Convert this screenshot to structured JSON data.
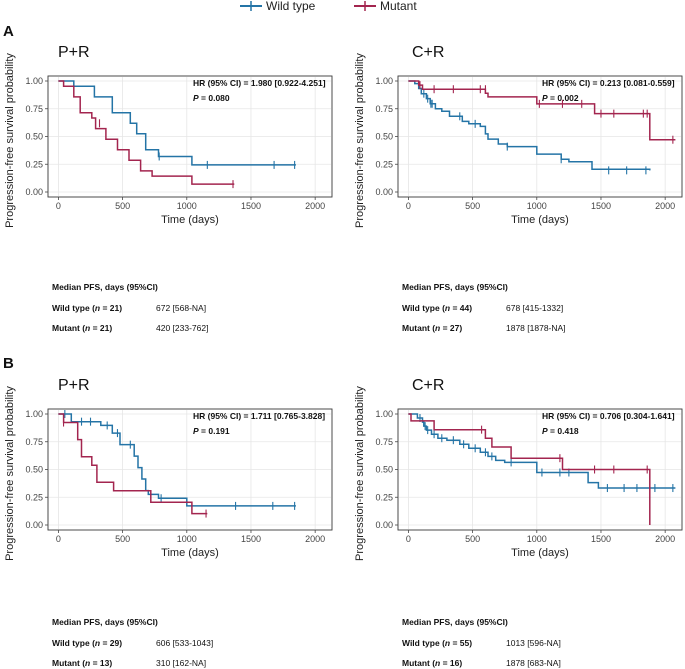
{
  "legend": {
    "items": [
      {
        "label": "Wild type",
        "color": "#2474a6"
      },
      {
        "label": "Mutant",
        "color": "#a3254f"
      }
    ]
  },
  "sections": [
    {
      "label": "A"
    },
    {
      "label": "B"
    }
  ],
  "chart_data": [
    {
      "type": "line",
      "subtype": "kaplan-meier",
      "section": "A",
      "title": "P+R",
      "xlabel": "Time (days)",
      "ylabel": "Progression-free survival probability",
      "xlim": [
        0,
        2000
      ],
      "ylim": [
        0,
        1
      ],
      "xticks": [
        0,
        500,
        1000,
        1500,
        2000
      ],
      "yticks": [
        0.0,
        0.25,
        0.5,
        0.75,
        1.0
      ],
      "grid": true,
      "hr_text": "HR (95% CI) = 1.980 [0.922-4.251]",
      "p_prefix": "P",
      "p_value": "= 0.080",
      "series": [
        {
          "name": "Wild type",
          "color": "#2474a6",
          "steps": [
            [
              0,
              1.0
            ],
            [
              120,
              0.952
            ],
            [
              280,
              0.857
            ],
            [
              420,
              0.714
            ],
            [
              560,
              0.619
            ],
            [
              610,
              0.524
            ],
            [
              680,
              0.381
            ],
            [
              780,
              0.32
            ],
            [
              1040,
              0.244
            ],
            [
              1850,
              0.244
            ]
          ],
          "censor": [
            [
              1160,
              0.244
            ],
            [
              1680,
              0.244
            ],
            [
              1840,
              0.244
            ],
            [
              785,
              0.32
            ]
          ]
        },
        {
          "name": "Mutant",
          "color": "#a3254f",
          "steps": [
            [
              0,
              1.0
            ],
            [
              40,
              0.952
            ],
            [
              120,
              0.857
            ],
            [
              170,
              0.714
            ],
            [
              260,
              0.667
            ],
            [
              290,
              0.571
            ],
            [
              370,
              0.476
            ],
            [
              460,
              0.381
            ],
            [
              550,
              0.286
            ],
            [
              640,
              0.19
            ],
            [
              730,
              0.143
            ],
            [
              1040,
              0.071
            ],
            [
              1370,
              0.071
            ]
          ],
          "censor": [
            [
              320,
              0.619
            ],
            [
              1360,
              0.071
            ]
          ]
        }
      ],
      "median_header": "Median PFS, days  (95%CI)",
      "rows": [
        {
          "group": "Wild type",
          "n": "21",
          "median": "672 [568-NA]"
        },
        {
          "group": "Mutant",
          "n": "21",
          "median": "420 [233-762]"
        }
      ]
    },
    {
      "type": "line",
      "subtype": "kaplan-meier",
      "section": "A",
      "title": "C+R",
      "xlabel": "Time (days)",
      "ylabel": "Progression-free survival probability",
      "xlim": [
        0,
        2000
      ],
      "ylim": [
        0,
        1
      ],
      "xticks": [
        0,
        500,
        1000,
        1500,
        2000
      ],
      "yticks": [
        0.0,
        0.25,
        0.5,
        0.75,
        1.0
      ],
      "grid": true,
      "hr_text": "HR (95% CI) = 0.213 [0.081-0.559]",
      "p_prefix": "P",
      "p_value": "= 0.002",
      "series": [
        {
          "name": "Wild type",
          "color": "#2474a6",
          "steps": [
            [
              0,
              1.0
            ],
            [
              50,
              0.977
            ],
            [
              80,
              0.932
            ],
            [
              100,
              0.886
            ],
            [
              140,
              0.841
            ],
            [
              170,
              0.795
            ],
            [
              210,
              0.75
            ],
            [
              260,
              0.727
            ],
            [
              320,
              0.682
            ],
            [
              420,
              0.636
            ],
            [
              470,
              0.614
            ],
            [
              560,
              0.591
            ],
            [
              600,
              0.523
            ],
            [
              620,
              0.477
            ],
            [
              700,
              0.432
            ],
            [
              770,
              0.409
            ],
            [
              1000,
              0.341
            ],
            [
              1190,
              0.295
            ],
            [
              1250,
              0.273
            ],
            [
              1430,
              0.205
            ],
            [
              1880,
              0.195
            ]
          ],
          "censor": [
            [
              120,
              0.886
            ],
            [
              150,
              0.841
            ],
            [
              175,
              0.795
            ],
            [
              185,
              0.795
            ],
            [
              400,
              0.682
            ],
            [
              520,
              0.614
            ],
            [
              770,
              0.409
            ],
            [
              1190,
              0.295
            ],
            [
              1560,
              0.195
            ],
            [
              1700,
              0.195
            ],
            [
              1850,
              0.195
            ]
          ]
        },
        {
          "name": "Mutant",
          "color": "#a3254f",
          "steps": [
            [
              0,
              1.0
            ],
            [
              80,
              0.963
            ],
            [
              110,
              0.926
            ],
            [
              600,
              0.889
            ],
            [
              620,
              0.857
            ],
            [
              1000,
              0.794
            ],
            [
              1450,
              0.706
            ],
            [
              1860,
              0.706
            ],
            [
              1880,
              0.471
            ],
            [
              2080,
              0.471
            ]
          ],
          "censor": [
            [
              90,
              0.963
            ],
            [
              200,
              0.926
            ],
            [
              350,
              0.926
            ],
            [
              560,
              0.926
            ],
            [
              600,
              0.926
            ],
            [
              1020,
              0.794
            ],
            [
              1200,
              0.794
            ],
            [
              1350,
              0.794
            ],
            [
              1500,
              0.706
            ],
            [
              1600,
              0.706
            ],
            [
              1830,
              0.706
            ],
            [
              1860,
              0.706
            ],
            [
              2060,
              0.471
            ]
          ]
        }
      ],
      "median_header": "Median PFS, days (95%CI)",
      "rows": [
        {
          "group": "Wild type",
          "n": "44",
          "median": "678 [415-1332]"
        },
        {
          "group": "Mutant",
          "n": "27",
          "median": "1878 [1878-NA]"
        }
      ]
    },
    {
      "type": "line",
      "subtype": "kaplan-meier",
      "section": "B",
      "title": "P+R",
      "xlabel": "Time (days)",
      "ylabel": "Progression-free survival probability",
      "xlim": [
        0,
        2000
      ],
      "ylim": [
        0,
        1
      ],
      "xticks": [
        0,
        500,
        1000,
        1500,
        2000
      ],
      "yticks": [
        0.0,
        0.25,
        0.5,
        0.75,
        1.0
      ],
      "grid": true,
      "hr_text": "HR (95% CI) = 1.711 [0.765-3.828]",
      "p_prefix": "P",
      "p_value": "= 0.191",
      "series": [
        {
          "name": "Wild type",
          "color": "#2474a6",
          "steps": [
            [
              0,
              1.0
            ],
            [
              100,
              0.931
            ],
            [
              330,
              0.897
            ],
            [
              420,
              0.828
            ],
            [
              480,
              0.724
            ],
            [
              590,
              0.621
            ],
            [
              620,
              0.517
            ],
            [
              650,
              0.414
            ],
            [
              680,
              0.31
            ],
            [
              700,
              0.276
            ],
            [
              780,
              0.241
            ],
            [
              1000,
              0.172
            ],
            [
              1850,
              0.172
            ]
          ],
          "censor": [
            [
              50,
              1.0
            ],
            [
              180,
              0.931
            ],
            [
              250,
              0.931
            ],
            [
              380,
              0.897
            ],
            [
              460,
              0.828
            ],
            [
              560,
              0.724
            ],
            [
              800,
              0.241
            ],
            [
              1380,
              0.172
            ],
            [
              1670,
              0.172
            ],
            [
              1840,
              0.172
            ]
          ]
        },
        {
          "name": "Mutant",
          "color": "#a3254f",
          "steps": [
            [
              0,
              1.0
            ],
            [
              40,
              0.923
            ],
            [
              150,
              0.769
            ],
            [
              180,
              0.615
            ],
            [
              260,
              0.538
            ],
            [
              300,
              0.385
            ],
            [
              430,
              0.308
            ],
            [
              720,
              0.205
            ],
            [
              1040,
              0.103
            ],
            [
              1160,
              0.103
            ]
          ],
          "censor": [
            [
              40,
              0.923
            ],
            [
              1150,
              0.103
            ]
          ]
        }
      ],
      "median_header": "Median PFS, days (95%CI)",
      "rows": [
        {
          "group": "Wild type",
          "n": "29",
          "median": "606 [533-1043]"
        },
        {
          "group": "Mutant",
          "n": "13",
          "median": "310 [162-NA]"
        }
      ]
    },
    {
      "type": "line",
      "subtype": "kaplan-meier",
      "section": "B",
      "title": "C+R",
      "xlabel": "Time (days)",
      "ylabel": "Progression-free survival probability",
      "xlim": [
        0,
        2000
      ],
      "ylim": [
        0,
        1
      ],
      "xticks": [
        0,
        500,
        1000,
        1500,
        2000
      ],
      "yticks": [
        0.0,
        0.25,
        0.5,
        0.75,
        1.0
      ],
      "grid": true,
      "hr_text": "HR (95% CI) = 0.706 [0.304-1.641]",
      "p_prefix": "P",
      "p_value": "= 0.418",
      "series": [
        {
          "name": "Wild type",
          "color": "#2474a6",
          "steps": [
            [
              0,
              1.0
            ],
            [
              70,
              0.964
            ],
            [
              110,
              0.927
            ],
            [
              120,
              0.891
            ],
            [
              140,
              0.855
            ],
            [
              180,
              0.818
            ],
            [
              230,
              0.782
            ],
            [
              300,
              0.764
            ],
            [
              400,
              0.727
            ],
            [
              470,
              0.691
            ],
            [
              560,
              0.655
            ],
            [
              620,
              0.618
            ],
            [
              680,
              0.582
            ],
            [
              750,
              0.564
            ],
            [
              1000,
              0.473
            ],
            [
              1400,
              0.382
            ],
            [
              1480,
              0.333
            ],
            [
              2080,
              0.333
            ]
          ],
          "censor": [
            [
              90,
              0.964
            ],
            [
              130,
              0.891
            ],
            [
              150,
              0.855
            ],
            [
              200,
              0.818
            ],
            [
              260,
              0.782
            ],
            [
              350,
              0.764
            ],
            [
              430,
              0.727
            ],
            [
              520,
              0.691
            ],
            [
              600,
              0.655
            ],
            [
              650,
              0.618
            ],
            [
              800,
              0.564
            ],
            [
              1040,
              0.473
            ],
            [
              1180,
              0.473
            ],
            [
              1250,
              0.473
            ],
            [
              1550,
              0.333
            ],
            [
              1680,
              0.333
            ],
            [
              1780,
              0.333
            ],
            [
              1920,
              0.333
            ],
            [
              2060,
              0.333
            ]
          ]
        },
        {
          "name": "Mutant",
          "color": "#a3254f",
          "steps": [
            [
              0,
              1.0
            ],
            [
              20,
              0.938
            ],
            [
              200,
              0.859
            ],
            [
              600,
              0.781
            ],
            [
              650,
              0.703
            ],
            [
              800,
              0.602
            ],
            [
              1200,
              0.5
            ],
            [
              1870,
              0.5
            ],
            [
              1880,
              0.0
            ]
          ],
          "censor": [
            [
              570,
              0.859
            ],
            [
              1180,
              0.602
            ],
            [
              1450,
              0.5
            ],
            [
              1600,
              0.5
            ],
            [
              1860,
              0.5
            ]
          ]
        }
      ],
      "median_header": "Median PFS, days (95%CI)",
      "rows": [
        {
          "group": "Wild type",
          "n": "55",
          "median": "1013 [596-NA]"
        },
        {
          "group": "Mutant",
          "n": "16",
          "median": "1878 [683-NA]"
        }
      ]
    }
  ]
}
